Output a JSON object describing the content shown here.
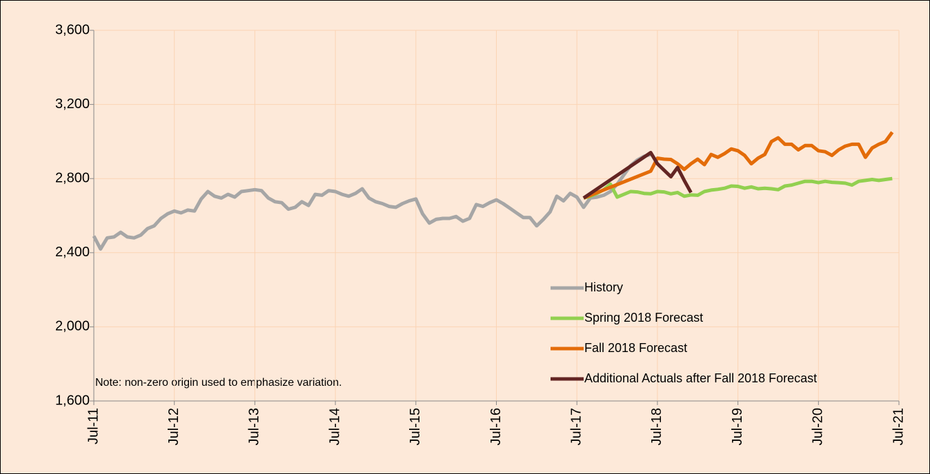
{
  "chart_data": {
    "type": "line",
    "note": "Note: non-zero origin used to emphasize variation.",
    "xlim": [
      "2011-07",
      "2021-07"
    ],
    "xticks": [
      {
        "value": "2011-07",
        "label": "Jul-11"
      },
      {
        "value": "2012-07",
        "label": "Jul-12"
      },
      {
        "value": "2013-07",
        "label": "Jul-13"
      },
      {
        "value": "2014-07",
        "label": "Jul-14"
      },
      {
        "value": "2015-07",
        "label": "Jul-15"
      },
      {
        "value": "2016-07",
        "label": "Jul-16"
      },
      {
        "value": "2017-07",
        "label": "Jul-17"
      },
      {
        "value": "2018-07",
        "label": "Jul-18"
      },
      {
        "value": "2019-07",
        "label": "Jul-19"
      },
      {
        "value": "2020-07",
        "label": "Jul-20"
      },
      {
        "value": "2021-07",
        "label": "Jul-21"
      }
    ],
    "ylim": [
      1600,
      3600
    ],
    "yticks": [
      {
        "value": 1600,
        "label": "1,600"
      },
      {
        "value": 2000,
        "label": "2,000"
      },
      {
        "value": 2400,
        "label": "2,400"
      },
      {
        "value": 2800,
        "label": "2,800"
      },
      {
        "value": 3200,
        "label": "3,200"
      },
      {
        "value": 3600,
        "label": "3,600"
      }
    ],
    "grid": true,
    "series": [
      {
        "name": "History",
        "color": "#a6a6a6",
        "x": [
          "2011-07",
          "2011-08",
          "2011-09",
          "2011-10",
          "2011-11",
          "2011-12",
          "2012-01",
          "2012-02",
          "2012-03",
          "2012-04",
          "2012-05",
          "2012-06",
          "2012-07",
          "2012-08",
          "2012-09",
          "2012-10",
          "2012-11",
          "2012-12",
          "2013-01",
          "2013-02",
          "2013-03",
          "2013-04",
          "2013-05",
          "2013-06",
          "2013-07",
          "2013-08",
          "2013-09",
          "2013-10",
          "2013-11",
          "2013-12",
          "2014-01",
          "2014-02",
          "2014-03",
          "2014-04",
          "2014-05",
          "2014-06",
          "2014-07",
          "2014-08",
          "2014-09",
          "2014-10",
          "2014-11",
          "2014-12",
          "2015-01",
          "2015-02",
          "2015-03",
          "2015-04",
          "2015-05",
          "2015-06",
          "2015-07",
          "2015-08",
          "2015-09",
          "2015-10",
          "2015-11",
          "2015-12",
          "2016-01",
          "2016-02",
          "2016-03",
          "2016-04",
          "2016-05",
          "2016-06",
          "2016-07",
          "2016-08",
          "2016-09",
          "2016-10",
          "2016-11",
          "2016-12",
          "2017-01",
          "2017-02",
          "2017-03",
          "2017-04",
          "2017-05",
          "2017-06",
          "2017-07",
          "2017-08",
          "2017-09",
          "2017-10",
          "2017-11",
          "2017-12",
          "2018-01",
          "2018-02",
          "2018-03",
          "2018-04",
          "2018-05",
          "2018-06"
        ],
        "values": [
          2490,
          2420,
          2480,
          2485,
          2510,
          2485,
          2480,
          2495,
          2530,
          2545,
          2585,
          2610,
          2625,
          2615,
          2630,
          2625,
          2690,
          2730,
          2705,
          2695,
          2715,
          2700,
          2730,
          2735,
          2740,
          2735,
          2695,
          2675,
          2670,
          2635,
          2645,
          2675,
          2655,
          2715,
          2710,
          2735,
          2730,
          2715,
          2705,
          2720,
          2745,
          2695,
          2675,
          2665,
          2650,
          2645,
          2665,
          2680,
          2690,
          2610,
          2560,
          2580,
          2585,
          2585,
          2595,
          2570,
          2585,
          2660,
          2650,
          2670,
          2685,
          2665,
          2640,
          2615,
          2590,
          2590,
          2545,
          2580,
          2620,
          2705,
          2680,
          2720,
          2700,
          2645,
          2695,
          2700,
          2710,
          2730,
          2770,
          2820,
          2870,
          2900,
          2920,
          2930
        ]
      },
      {
        "name": "Spring 2018 Forecast",
        "color": "#92d050",
        "x": [
          "2017-08",
          "2017-09",
          "2017-10",
          "2017-11",
          "2017-12",
          "2018-01",
          "2018-02",
          "2018-03",
          "2018-04",
          "2018-05",
          "2018-06",
          "2018-07",
          "2018-08",
          "2018-09",
          "2018-10",
          "2018-11",
          "2018-12",
          "2019-01",
          "2019-02",
          "2019-03",
          "2019-04",
          "2019-05",
          "2019-06",
          "2019-07",
          "2019-08",
          "2019-09",
          "2019-10",
          "2019-11",
          "2019-12",
          "2020-01",
          "2020-02",
          "2020-03",
          "2020-04",
          "2020-05",
          "2020-06",
          "2020-07",
          "2020-08",
          "2020-09",
          "2020-10",
          "2020-11",
          "2020-12",
          "2021-01",
          "2021-02",
          "2021-03",
          "2021-04",
          "2021-05",
          "2021-06"
        ],
        "values": [
          2695,
          2705,
          2720,
          2740,
          2770,
          2700,
          2715,
          2730,
          2728,
          2720,
          2718,
          2730,
          2728,
          2718,
          2725,
          2705,
          2712,
          2710,
          2730,
          2738,
          2742,
          2748,
          2760,
          2758,
          2748,
          2755,
          2745,
          2748,
          2745,
          2740,
          2760,
          2765,
          2775,
          2785,
          2785,
          2778,
          2785,
          2780,
          2778,
          2775,
          2765,
          2785,
          2790,
          2795,
          2790,
          2795,
          2800
        ]
      },
      {
        "name": "Fall 2018 Forecast",
        "color": "#e36c09",
        "x": [
          "2017-08",
          "2018-06",
          "2018-07",
          "2018-08",
          "2018-09",
          "2018-10",
          "2018-11",
          "2018-12",
          "2019-01",
          "2019-02",
          "2019-03",
          "2019-04",
          "2019-05",
          "2019-06",
          "2019-07",
          "2019-08",
          "2019-09",
          "2019-10",
          "2019-11",
          "2019-12",
          "2020-01",
          "2020-02",
          "2020-03",
          "2020-04",
          "2020-05",
          "2020-06",
          "2020-07",
          "2020-08",
          "2020-09",
          "2020-10",
          "2020-11",
          "2020-12",
          "2021-01",
          "2021-02",
          "2021-03",
          "2021-04",
          "2021-05",
          "2021-06"
        ],
        "values": [
          2695,
          2840,
          2910,
          2905,
          2903,
          2880,
          2850,
          2880,
          2905,
          2875,
          2930,
          2915,
          2935,
          2960,
          2950,
          2925,
          2880,
          2910,
          2930,
          3000,
          3020,
          2985,
          2985,
          2955,
          2978,
          2978,
          2950,
          2945,
          2925,
          2955,
          2975,
          2985,
          2985,
          2915,
          2965,
          2985,
          3000,
          3050
        ]
      },
      {
        "name": "Additional Actuals after Fall 2018 Forecast",
        "color": "#632523",
        "x": [
          "2017-08",
          "2018-06",
          "2018-07",
          "2018-08",
          "2018-09",
          "2018-10",
          "2018-11",
          "2018-12"
        ],
        "values": [
          2695,
          2940,
          2880,
          2845,
          2810,
          2860,
          2790,
          2725
        ]
      }
    ]
  }
}
